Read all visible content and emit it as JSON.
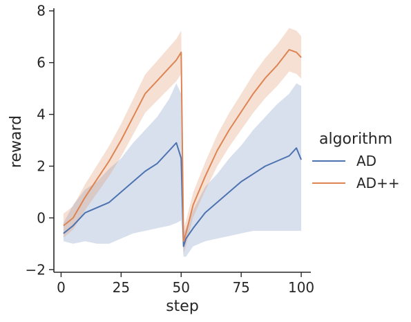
{
  "chart_data": {
    "type": "line",
    "xlabel": "step",
    "ylabel": "reward",
    "xlim": [
      -3,
      104
    ],
    "ylim": [
      -2.1,
      8.1
    ],
    "xticks": [
      0,
      25,
      50,
      75,
      100
    ],
    "yticks": [
      -2,
      0,
      2,
      4,
      6,
      8
    ],
    "xtick_labels": [
      "0",
      "25",
      "50",
      "75",
      "100"
    ],
    "ytick_labels": [
      "−2",
      "0",
      "2",
      "4",
      "6",
      "8"
    ],
    "grid": false,
    "legend": {
      "title": "algorithm",
      "placement": "outside-right"
    },
    "series": [
      {
        "name": "AD",
        "color": "#4c72b0",
        "x": [
          1,
          5,
          10,
          15,
          20,
          25,
          30,
          35,
          40,
          45,
          48,
          50,
          51,
          52,
          55,
          60,
          65,
          70,
          75,
          80,
          85,
          90,
          95,
          98,
          100
        ],
        "y": [
          -0.6,
          -0.3,
          0.2,
          0.4,
          0.6,
          1.0,
          1.4,
          1.8,
          2.1,
          2.6,
          2.9,
          2.3,
          -1.1,
          -0.8,
          -0.4,
          0.2,
          0.6,
          1.0,
          1.4,
          1.7,
          2.0,
          2.2,
          2.4,
          2.7,
          2.25
        ],
        "lower": [
          -0.9,
          -1.0,
          -0.9,
          -1.0,
          -1.0,
          -0.8,
          -0.6,
          -0.5,
          -0.4,
          -0.3,
          -0.2,
          -0.1,
          -1.5,
          -1.5,
          -1.1,
          -0.9,
          -0.8,
          -0.7,
          -0.6,
          -0.5,
          -0.5,
          -0.5,
          -0.5,
          -0.5,
          -0.5
        ],
        "upper": [
          -0.2,
          0.5,
          1.1,
          1.4,
          1.9,
          2.3,
          2.9,
          3.4,
          3.9,
          4.6,
          5.2,
          4.8,
          -0.6,
          -0.4,
          0.3,
          1.2,
          1.7,
          2.3,
          2.8,
          3.4,
          3.9,
          4.4,
          4.8,
          5.2,
          5.1
        ]
      },
      {
        "name": "AD++",
        "color": "#dd8452",
        "x": [
          1,
          5,
          10,
          15,
          20,
          25,
          30,
          35,
          40,
          45,
          48,
          50,
          51,
          52,
          55,
          60,
          65,
          70,
          75,
          80,
          85,
          90,
          95,
          98,
          100
        ],
        "y": [
          -0.3,
          0.0,
          0.8,
          1.5,
          2.2,
          3.0,
          3.9,
          4.8,
          5.3,
          5.8,
          6.1,
          6.4,
          -0.9,
          -0.6,
          0.5,
          1.6,
          2.6,
          3.4,
          4.1,
          4.8,
          5.4,
          5.9,
          6.5,
          6.4,
          6.2
        ]
      }
    ]
  }
}
